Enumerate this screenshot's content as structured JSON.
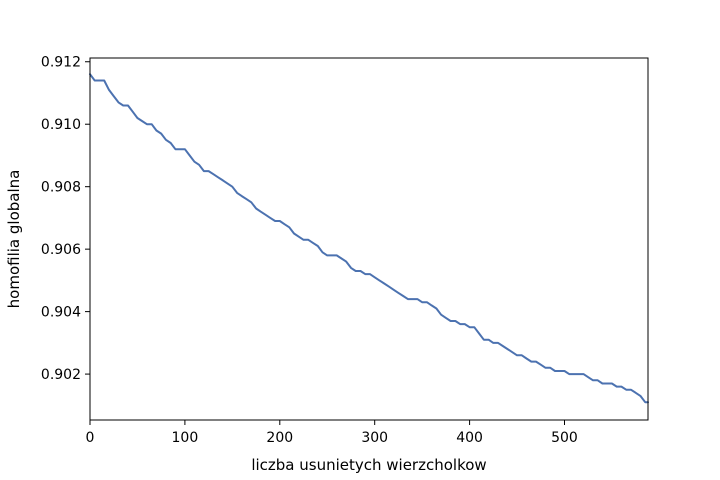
{
  "chart_data": {
    "type": "line",
    "title": "",
    "xlabel": "liczba usunietych wierzcholkow",
    "ylabel": "homofilia globalna",
    "xlim": [
      0,
      588
    ],
    "ylim": [
      0.90053,
      0.91212
    ],
    "xticks": [
      0,
      100,
      200,
      300,
      400,
      500
    ],
    "xtick_labels": [
      "0",
      "100",
      "200",
      "300",
      "400",
      "500"
    ],
    "yticks": [
      0.902,
      0.904,
      0.906,
      0.908,
      0.91,
      0.912
    ],
    "ytick_labels": [
      "0.902",
      "0.904",
      "0.906",
      "0.908",
      "0.910",
      "0.912"
    ],
    "grid": false,
    "legend": "none",
    "series": [
      {
        "color": "#4c72b0",
        "x": [
          0,
          5,
          10,
          15,
          20,
          25,
          30,
          35,
          40,
          45,
          50,
          55,
          60,
          65,
          70,
          75,
          80,
          85,
          90,
          95,
          100,
          105,
          110,
          115,
          120,
          125,
          130,
          135,
          140,
          145,
          150,
          155,
          160,
          165,
          170,
          175,
          180,
          185,
          190,
          195,
          200,
          205,
          210,
          215,
          220,
          225,
          230,
          235,
          240,
          245,
          250,
          255,
          260,
          265,
          270,
          275,
          280,
          285,
          290,
          295,
          300,
          305,
          310,
          315,
          320,
          325,
          330,
          335,
          340,
          345,
          350,
          355,
          360,
          365,
          370,
          375,
          380,
          385,
          390,
          395,
          400,
          405,
          410,
          415,
          420,
          425,
          430,
          435,
          440,
          445,
          450,
          455,
          460,
          465,
          470,
          475,
          480,
          485,
          490,
          495,
          500,
          505,
          510,
          515,
          520,
          525,
          530,
          535,
          540,
          545,
          550,
          555,
          560,
          565,
          570,
          575,
          580,
          585,
          588
        ],
        "y": [
          0.9116,
          0.9114,
          0.9114,
          0.9114,
          0.9111,
          0.9109,
          0.9107,
          0.9106,
          0.9106,
          0.9104,
          0.9102,
          0.9101,
          0.91,
          0.91,
          0.9098,
          0.9097,
          0.9095,
          0.9094,
          0.9092,
          0.9092,
          0.9092,
          0.909,
          0.9088,
          0.9087,
          0.9085,
          0.9085,
          0.9084,
          0.9083,
          0.9082,
          0.9081,
          0.908,
          0.9078,
          0.9077,
          0.9076,
          0.9075,
          0.9073,
          0.9072,
          0.9071,
          0.907,
          0.9069,
          0.9069,
          0.9068,
          0.9067,
          0.9065,
          0.9064,
          0.9063,
          0.9063,
          0.9062,
          0.9061,
          0.9059,
          0.9058,
          0.9058,
          0.9058,
          0.9057,
          0.9056,
          0.9054,
          0.9053,
          0.9053,
          0.9052,
          0.9052,
          0.9051,
          0.905,
          0.9049,
          0.9048,
          0.9047,
          0.9046,
          0.9045,
          0.9044,
          0.9044,
          0.9044,
          0.9043,
          0.9043,
          0.9042,
          0.9041,
          0.9039,
          0.9038,
          0.9037,
          0.9037,
          0.9036,
          0.9036,
          0.9035,
          0.9035,
          0.9033,
          0.9031,
          0.9031,
          0.903,
          0.903,
          0.9029,
          0.9028,
          0.9027,
          0.9026,
          0.9026,
          0.9025,
          0.9024,
          0.9024,
          0.9023,
          0.9022,
          0.9022,
          0.9021,
          0.9021,
          0.9021,
          0.902,
          0.902,
          0.902,
          0.902,
          0.9019,
          0.9018,
          0.9018,
          0.9017,
          0.9017,
          0.9017,
          0.9016,
          0.9016,
          0.9015,
          0.9015,
          0.9014,
          0.9013,
          0.9011,
          0.9011
        ]
      }
    ]
  }
}
